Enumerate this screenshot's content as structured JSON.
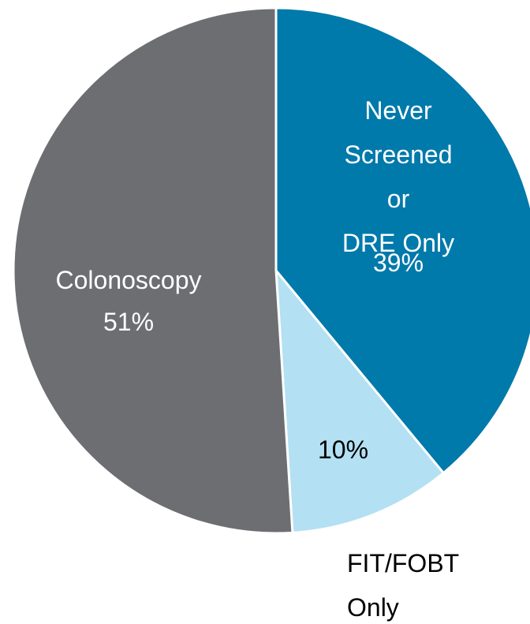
{
  "chart_data": {
    "type": "pie",
    "categories": [
      "Never\nScreened or\nDRE Only",
      "FIT/FOBT\nOnly",
      "Colonoscopy"
    ],
    "values": [
      39,
      10,
      51
    ],
    "value_labels": [
      "39%",
      "10%",
      "51%"
    ],
    "colors": [
      "#0079ab",
      "#b3e0f2",
      "#6d6e71"
    ]
  }
}
